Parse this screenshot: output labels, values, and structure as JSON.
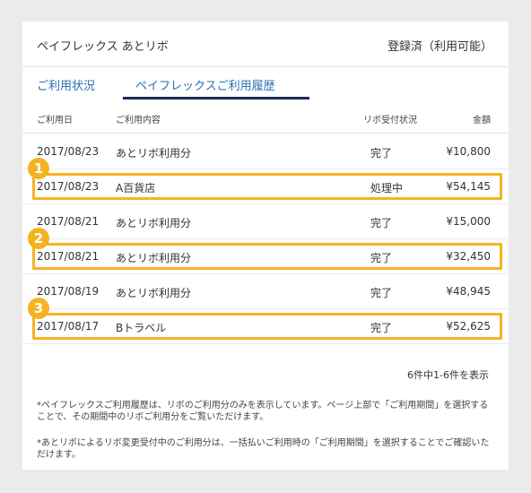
{
  "header": {
    "title": "ペイフレックス あとリボ",
    "status": "登録済（利用可能）"
  },
  "tabs": [
    {
      "label": "ご利用状況"
    },
    {
      "label": "ペイフレックスご利用履歴"
    }
  ],
  "columns": {
    "date": "ご利用日",
    "desc": "ご利用内容",
    "status": "リボ受付状況",
    "amount": "金額"
  },
  "rows": [
    {
      "date": "2017/08/23",
      "desc": "あとリボ利用分",
      "status": "完了",
      "amount": "¥10,800"
    },
    {
      "date": "2017/08/23",
      "desc": "A百貨店",
      "status": "処理中",
      "amount": "¥54,145"
    },
    {
      "date": "2017/08/21",
      "desc": "あとリボ利用分",
      "status": "完了",
      "amount": "¥15,000"
    },
    {
      "date": "2017/08/21",
      "desc": "あとリボ利用分",
      "status": "完了",
      "amount": "¥32,450"
    },
    {
      "date": "2017/08/19",
      "desc": "あとリボ利用分",
      "status": "完了",
      "amount": "¥48,945"
    },
    {
      "date": "2017/08/17",
      "desc": "Bトラベル",
      "status": "完了",
      "amount": "¥52,625"
    }
  ],
  "badges": [
    "1",
    "2",
    "3"
  ],
  "pagination": {
    "count_text": "6件中1-6件を表示"
  },
  "notes": [
    "*ペイフレックスご利用履歴は、リボのご利用分のみを表示しています。ページ上部で「ご利用期間」を選択することで、その期間中のリボご利用分をご覧いただけます。",
    "*あとリボによるリボ変更受付中のご利用分は、一括払いご利用時の「ご利用期間」を選択することでご確認いただけます。"
  ],
  "colors": {
    "highlight": "#f5b323",
    "tab_text": "#2a6fb5",
    "tab_underline": "#1d2a52"
  }
}
